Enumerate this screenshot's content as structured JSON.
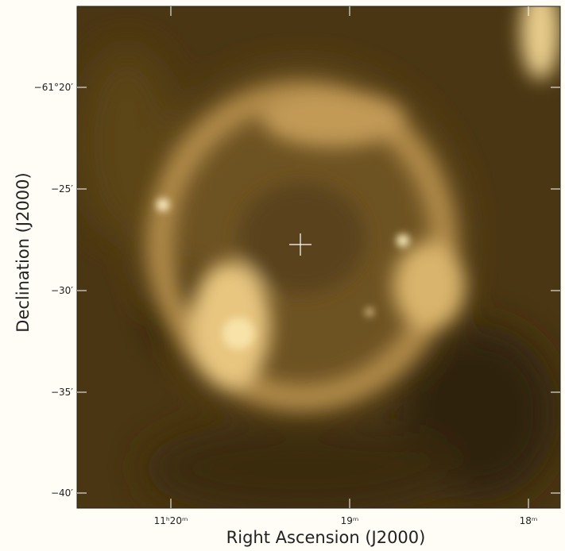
{
  "figure": {
    "x_label": "Right Ascension (J2000)",
    "y_label": "Declination (J2000)",
    "x_ticks": [
      "11ʰ20ᵐ",
      "19ᵐ",
      "18ᵐ"
    ],
    "y_ticks": [
      "−61°20′",
      "−25′",
      "−30′",
      "−35′",
      "−40′"
    ]
  }
}
